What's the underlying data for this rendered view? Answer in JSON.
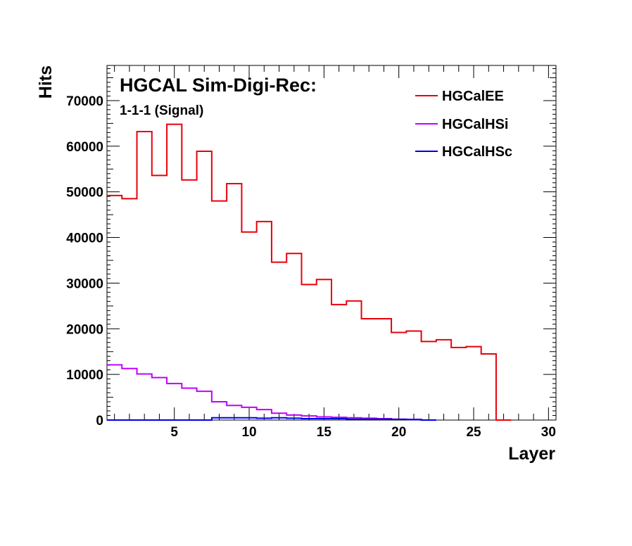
{
  "chart_data": {
    "type": "line",
    "title": "HGCAL Sim-Digi-Rec:",
    "subtitle": "1-1-1 (Signal)",
    "xlabel": "Layer",
    "ylabel": "Hits",
    "xlim": [
      0.5,
      30.5
    ],
    "ylim": [
      0,
      77700
    ],
    "x_ticks": [
      5,
      10,
      15,
      20,
      25,
      30
    ],
    "y_ticks": [
      0,
      10000,
      20000,
      30000,
      40000,
      50000,
      60000,
      70000
    ],
    "grid": false,
    "legend_position": "top-right",
    "series": [
      {
        "name": "HGCalEE",
        "color": "#e8000b",
        "bin_start": 0.5,
        "bin_width": 1,
        "values": [
          49200,
          48500,
          63200,
          53600,
          64800,
          52600,
          58900,
          48000,
          51800,
          41200,
          43500,
          34600,
          36500,
          29700,
          30800,
          25300,
          26100,
          22200,
          22200,
          19200,
          19500,
          17200,
          17600,
          15900,
          16100,
          14500,
          0,
          0,
          0,
          0
        ]
      },
      {
        "name": "HGCalHSi",
        "color": "#c000ff",
        "bin_start": 0.5,
        "bin_width": 1,
        "values": [
          12100,
          11300,
          10100,
          9300,
          8000,
          7000,
          6300,
          4000,
          3200,
          2800,
          2300,
          1500,
          1100,
          900,
          700,
          600,
          500,
          400,
          300,
          200,
          150,
          0,
          0,
          0,
          0,
          0,
          0,
          0,
          0,
          0
        ]
      },
      {
        "name": "HGCalHSc",
        "color": "#0000e0",
        "bin_start": 0.5,
        "bin_width": 1,
        "values": [
          0,
          0,
          0,
          0,
          0,
          0,
          0,
          500,
          500,
          500,
          400,
          500,
          400,
          300,
          300,
          300,
          200,
          200,
          200,
          150,
          100,
          0,
          0,
          0,
          0,
          0,
          0,
          0,
          0,
          0
        ]
      }
    ]
  }
}
